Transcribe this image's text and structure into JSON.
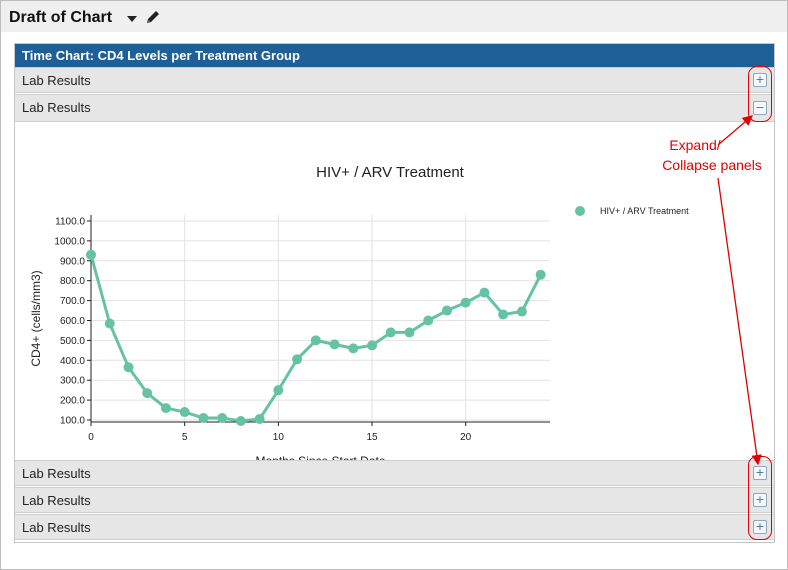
{
  "window": {
    "title": "Draft of Chart"
  },
  "header": {
    "title": "Time Chart: CD4 Levels per Treatment Group"
  },
  "panels_top": [
    {
      "label": "Lab Results",
      "state": "collapsed",
      "toggle": "+"
    },
    {
      "label": "Lab Results",
      "state": "expanded",
      "toggle": "−"
    }
  ],
  "panels_bottom": [
    {
      "label": "Lab Results",
      "state": "collapsed",
      "toggle": "+"
    },
    {
      "label": "Lab Results",
      "state": "collapsed",
      "toggle": "+"
    },
    {
      "label": "Lab Results",
      "state": "collapsed",
      "toggle": "+"
    }
  ],
  "annotation": {
    "line1": "Expand/",
    "line2": "Collapse panels",
    "color": "#e00000"
  },
  "chart_data": {
    "type": "line",
    "title": "HIV+ / ARV Treatment",
    "xlabel": "Months Since Start Date",
    "ylabel": "CD4+ (cells/mm3)",
    "xlim": [
      0,
      24.5
    ],
    "ylim": [
      90,
      1130
    ],
    "xticks": [
      0,
      5,
      10,
      15,
      20
    ],
    "yticks": [
      100,
      200,
      300,
      400,
      500,
      600,
      700,
      800,
      900,
      1000,
      1100
    ],
    "ytick_labels": [
      "100.0",
      "200.0",
      "300.0",
      "400.0",
      "500.0",
      "600.0",
      "700.0",
      "800.0",
      "900.0",
      "1000.0",
      "1100.0"
    ],
    "grid": true,
    "legend_position": "right",
    "series": [
      {
        "name": "HIV+ / ARV Treatment",
        "color": "#66c2a5",
        "x": [
          0,
          1,
          2,
          3,
          4,
          5,
          6,
          7,
          8,
          9,
          10,
          11,
          12,
          13,
          14,
          15,
          16,
          17,
          18,
          19,
          20,
          21,
          22,
          23,
          24
        ],
        "y": [
          930,
          585,
          365,
          235,
          160,
          140,
          110,
          110,
          95,
          105,
          250,
          405,
          500,
          480,
          460,
          475,
          540,
          540,
          600,
          650,
          690,
          740,
          630,
          645,
          830
        ]
      }
    ]
  }
}
